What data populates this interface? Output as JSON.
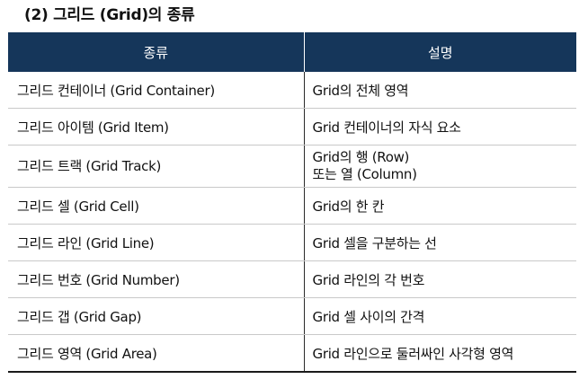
{
  "section_title": "(2) 그리드 (Grid)의 종류",
  "table": {
    "headers": [
      "종류",
      "설명"
    ],
    "rows": [
      {
        "type": "그리드 컨테이너 (Grid Container)",
        "description": [
          "Grid의 전체 영역"
        ]
      },
      {
        "type": "그리드 아이템 (Grid Item)",
        "description": [
          "Grid 컨테이너의 자식 요소"
        ]
      },
      {
        "type": "그리드 트랙 (Grid Track)",
        "description": [
          "Grid의 행 (Row)",
          "또는 열 (Column)"
        ]
      },
      {
        "type": "그리드 셀 (Grid Cell)",
        "description": [
          "Grid의 한 칸"
        ]
      },
      {
        "type": "그리드 라인 (Grid Line)",
        "description": [
          "Grid 셀을 구분하는 선"
        ]
      },
      {
        "type": "그리드 번호 (Grid Number)",
        "description": [
          "Grid 라인의 각 번호"
        ]
      },
      {
        "type": "그리드 갭 (Grid Gap)",
        "description": [
          "Grid 셀 사이의 간격"
        ]
      },
      {
        "type": "그리드 영역 (Grid Area)",
        "description": [
          "Grid 라인으로 둘러싸인 사각형 영역"
        ]
      }
    ]
  },
  "colors": {
    "header_background": "#15365a",
    "header_text": "#ffffff"
  }
}
